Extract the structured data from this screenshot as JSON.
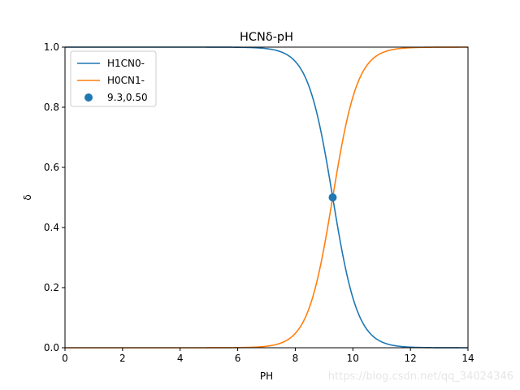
{
  "chart_data": {
    "type": "line",
    "title": "HCNδ-pH",
    "xlabel": "PH",
    "ylabel": "δ",
    "xlim": [
      0,
      14
    ],
    "ylim": [
      0,
      1
    ],
    "xticks": [
      "0",
      "2",
      "4",
      "6",
      "8",
      "10",
      "12",
      "14"
    ],
    "yticks": [
      "0.0",
      "0.2",
      "0.4",
      "0.6",
      "0.8",
      "1.0"
    ],
    "grid": false,
    "legend_position": "upper-left",
    "pKa": 9.3,
    "series": [
      {
        "name": "H1CN0-",
        "color": "#1f77b4",
        "x": [
          0,
          2,
          4,
          6,
          7,
          7.5,
          8,
          8.5,
          8.8,
          9.0,
          9.3,
          9.6,
          9.8,
          10.0,
          10.5,
          11,
          11.5,
          12,
          13,
          14
        ],
        "y": [
          1.0,
          1.0,
          1.0,
          0.9995,
          0.995,
          0.984,
          0.952,
          0.863,
          0.76,
          0.666,
          0.5,
          0.334,
          0.24,
          0.166,
          0.059,
          0.0196,
          0.0063,
          0.002,
          0.0002,
          2e-05
        ]
      },
      {
        "name": "H0CN1-",
        "color": "#ff7f0e",
        "x": [
          0,
          2,
          4,
          6,
          7,
          7.5,
          8,
          8.5,
          8.8,
          9.0,
          9.3,
          9.6,
          9.8,
          10.0,
          10.5,
          11,
          11.5,
          12,
          13,
          14
        ],
        "y": [
          0.0,
          0.0,
          0.0,
          0.0005,
          0.005,
          0.016,
          0.048,
          0.137,
          0.24,
          0.334,
          0.5,
          0.666,
          0.76,
          0.834,
          0.941,
          0.9804,
          0.9937,
          0.998,
          0.9998,
          0.99998
        ]
      }
    ],
    "points": [
      {
        "name": "9.3,0.50",
        "color": "#1f77b4",
        "x": 9.3,
        "y": 0.5
      }
    ]
  },
  "watermark": "https://blog.csdn.net/qq_34024346"
}
